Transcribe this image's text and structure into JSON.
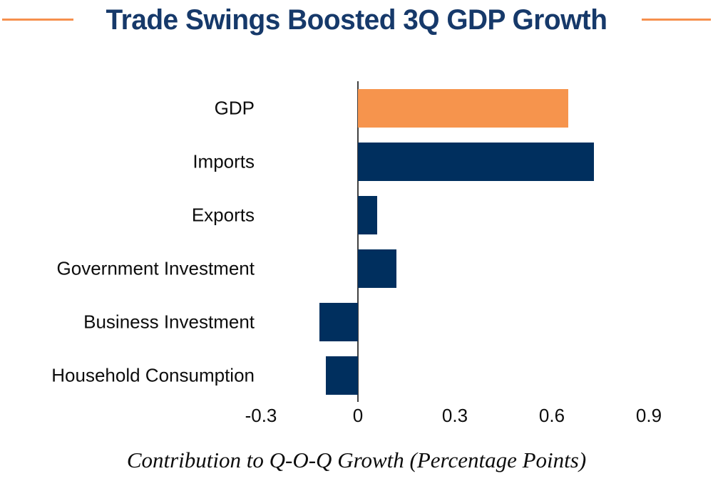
{
  "title": {
    "text": "Trade Swings Boosted 3Q GDP Growth",
    "color": "#16396A",
    "rule_color": "#F6904E"
  },
  "caption": "Contribution to Q-O-Q Growth (Percentage Points)",
  "colors": {
    "navy": "#002F5E",
    "orange": "#F6944D",
    "axis_line": "#404040",
    "text": "#0d0d0d"
  },
  "chart_data": {
    "type": "bar",
    "orientation": "horizontal",
    "title": "Trade Swings Boosted 3Q GDP Growth",
    "xlabel": "Contribution to Q-O-Q Growth (Percentage Points)",
    "ylabel": "",
    "categories": [
      "GDP",
      "Imports",
      "Exports",
      "Government Investment",
      "Business Investment",
      "Household Consumption"
    ],
    "values": [
      0.65,
      0.73,
      0.06,
      0.12,
      -0.12,
      -0.1
    ],
    "bar_colors": [
      "#F6944D",
      "#002F5E",
      "#002F5E",
      "#002F5E",
      "#002F5E",
      "#002F5E"
    ],
    "x_ticks": [
      -0.3,
      0,
      0.3,
      0.6,
      0.9
    ],
    "x_tick_labels": [
      "-0.3",
      "0",
      "0.3",
      "0.6",
      "0.9"
    ],
    "xlim": [
      -0.3,
      1.0
    ],
    "grid": false,
    "legend": false
  }
}
